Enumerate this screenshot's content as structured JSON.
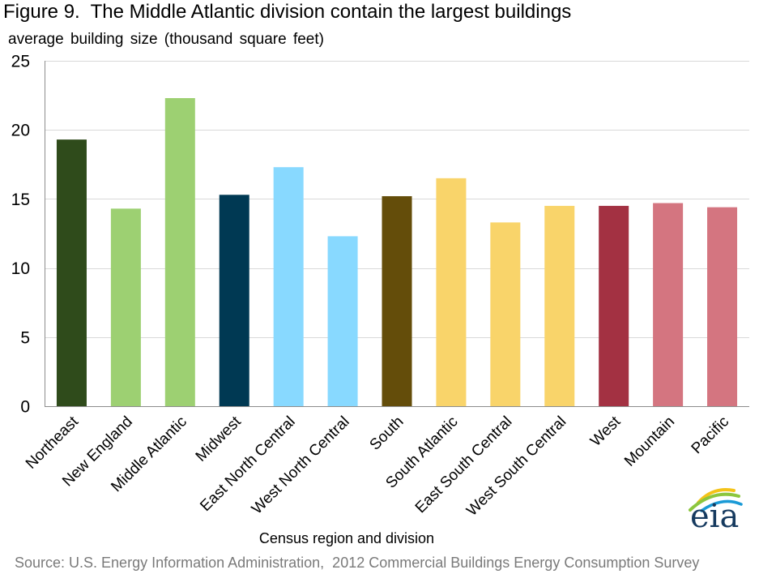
{
  "chart_data": {
    "type": "bar",
    "title": "Figure 9.  The Middle Atlantic division contain the largest buildings",
    "ylabel": "average building size (thousand square feet)",
    "xlabel": "Census region and division",
    "categories": [
      "Northeast",
      "New England",
      "Middle Atlantic",
      "Midwest",
      "East North Central",
      "West North Central",
      "South",
      "South Atlantic",
      "East South Central",
      "West South Central",
      "West",
      "Mountain",
      "Pacific"
    ],
    "values": [
      19.3,
      14.3,
      22.3,
      15.3,
      17.3,
      12.3,
      15.2,
      16.5,
      13.3,
      14.5,
      14.5,
      14.7,
      14.4
    ],
    "colors": [
      "#2f4b1b",
      "#9dd072",
      "#9dd072",
      "#003953",
      "#88d9ff",
      "#88d9ff",
      "#644d0a",
      "#f9d46a",
      "#f9d46a",
      "#f9d46a",
      "#a33142",
      "#d47580",
      "#d47580"
    ],
    "ylim": [
      0,
      25
    ],
    "yticks": [
      0,
      5,
      10,
      15,
      20,
      25
    ],
    "grid": true
  },
  "source": "Source: U.S. Energy Information Administration,  2012 Commercial Buildings Energy Consumption Survey",
  "logo": {
    "text": "eia"
  }
}
